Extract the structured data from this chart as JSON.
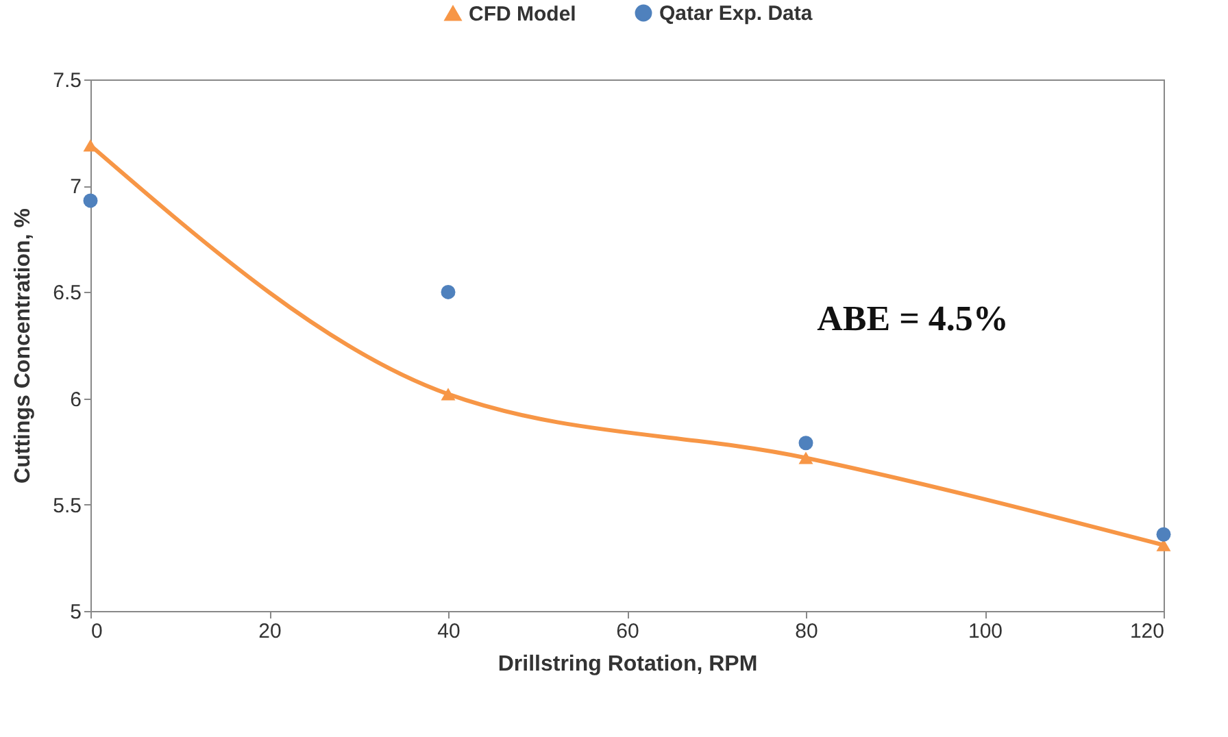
{
  "chart_data": {
    "type": "line",
    "xlabel": "Drillstring Rotation, RPM",
    "ylabel": "Cuttings Concentration, %",
    "x": [
      0,
      40,
      80,
      120
    ],
    "series": [
      {
        "name": "CFD Model",
        "color": "#f79646",
        "marker": "triangle",
        "values": [
          7.19,
          6.02,
          5.72,
          5.31
        ]
      },
      {
        "name": "Qatar Exp. Data",
        "type": "scatter",
        "color": "#4f81bd",
        "marker": "circle",
        "values": [
          6.93,
          6.5,
          5.79,
          5.36
        ]
      }
    ],
    "xlim": [
      0,
      120
    ],
    "xticks": [
      0,
      20,
      40,
      60,
      80,
      100,
      120
    ],
    "ylim": [
      5,
      7.5
    ],
    "yticks": [
      5,
      5.5,
      6,
      6.5,
      7,
      7.5
    ],
    "grid": false,
    "legend": "top",
    "annotations": [
      "ABE = 4.5%"
    ]
  }
}
